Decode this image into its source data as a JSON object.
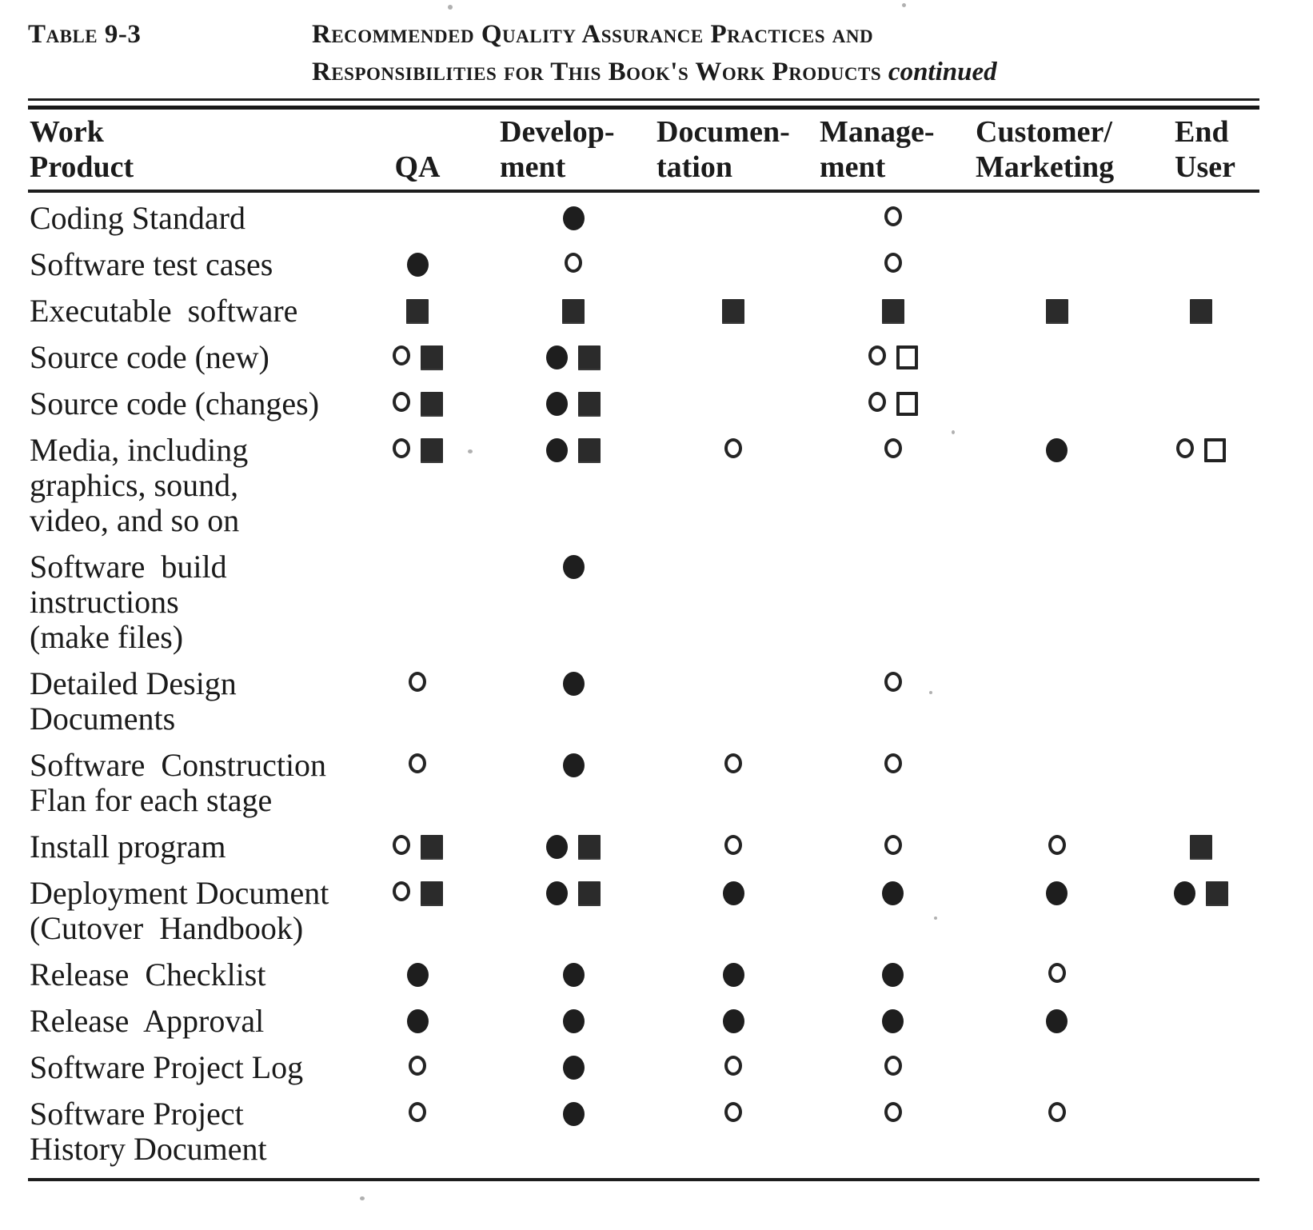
{
  "caption": {
    "label": "Table 9-3",
    "title_line1": "Recommended Quality Assurance Practices and",
    "title_line2": "Responsibilities for This Book's Work Products",
    "continued": "continued"
  },
  "colors": {
    "paper": "#ffffff",
    "ink": "#1b1b1b"
  },
  "symbol_legend": {
    "fc": "filled-circle",
    "oc": "open-circle",
    "fs": "filled-square",
    "os": "open-square"
  },
  "columns": [
    {
      "key": "work-product",
      "lines": [
        "Work",
        "Product"
      ]
    },
    {
      "key": "qa",
      "lines": [
        "",
        "QA"
      ]
    },
    {
      "key": "development",
      "lines": [
        "Develop-",
        "ment"
      ]
    },
    {
      "key": "documentation",
      "lines": [
        "Documen-",
        "tation"
      ]
    },
    {
      "key": "management",
      "lines": [
        "Manage-",
        "ment"
      ]
    },
    {
      "key": "customer-marketing",
      "lines": [
        "Customer/",
        "Marketing"
      ]
    },
    {
      "key": "end-user",
      "lines": [
        "End",
        "User"
      ]
    }
  ],
  "rows": [
    {
      "product_lines": [
        "Coding Standard"
      ],
      "cells": [
        [],
        [
          "fc"
        ],
        [],
        [
          "oc"
        ],
        [],
        []
      ]
    },
    {
      "product_lines": [
        "Software test cases"
      ],
      "cells": [
        [
          "fc"
        ],
        [
          "oc"
        ],
        [],
        [
          "oc"
        ],
        [],
        []
      ]
    },
    {
      "product_lines": [
        "Executable  software"
      ],
      "cells": [
        [
          "fs"
        ],
        [
          "fs"
        ],
        [
          "fs"
        ],
        [
          "fs"
        ],
        [
          "fs"
        ],
        [
          "fs"
        ]
      ]
    },
    {
      "product_lines": [
        "Source code (new)"
      ],
      "cells": [
        [
          "oc",
          "fs"
        ],
        [
          "fc",
          "fs"
        ],
        [],
        [
          "oc",
          "os"
        ],
        [],
        []
      ]
    },
    {
      "product_lines": [
        "Source code (changes)"
      ],
      "cells": [
        [
          "oc",
          "fs"
        ],
        [
          "fc",
          "fs"
        ],
        [],
        [
          "oc",
          "os"
        ],
        [],
        []
      ]
    },
    {
      "product_lines": [
        "Media, including",
        "graphics, sound,",
        "video, and so on"
      ],
      "cells": [
        [
          "oc",
          "fs"
        ],
        [
          "fc",
          "fs"
        ],
        [
          "oc"
        ],
        [
          "oc"
        ],
        [
          "fc"
        ],
        [
          "oc",
          "os"
        ]
      ]
    },
    {
      "product_lines": [
        "Software  build",
        "instructions",
        "(make files)"
      ],
      "cells": [
        [],
        [
          "fc"
        ],
        [],
        [],
        [],
        []
      ]
    },
    {
      "product_lines": [
        "Detailed Design",
        "Documents"
      ],
      "cells": [
        [
          "oc"
        ],
        [
          "fc"
        ],
        [],
        [
          "oc"
        ],
        [],
        []
      ]
    },
    {
      "product_lines": [
        "Software  Construction",
        "Flan for each stage"
      ],
      "cells": [
        [
          "oc"
        ],
        [
          "fc"
        ],
        [
          "oc"
        ],
        [
          "oc"
        ],
        [],
        []
      ]
    },
    {
      "product_lines": [
        "Install program"
      ],
      "cells": [
        [
          "oc",
          "fs"
        ],
        [
          "fc",
          "fs"
        ],
        [
          "oc"
        ],
        [
          "oc"
        ],
        [
          "oc"
        ],
        [
          "fs"
        ]
      ]
    },
    {
      "product_lines": [
        "Deployment Document",
        "(Cutover  Handbook)"
      ],
      "cells": [
        [
          "oc",
          "fs"
        ],
        [
          "fc",
          "fs"
        ],
        [
          "fc"
        ],
        [
          "fc"
        ],
        [
          "fc"
        ],
        [
          "fc",
          "fs"
        ]
      ]
    },
    {
      "product_lines": [
        "Release  Checklist"
      ],
      "cells": [
        [
          "fc"
        ],
        [
          "fc"
        ],
        [
          "fc"
        ],
        [
          "fc"
        ],
        [
          "oc"
        ],
        []
      ]
    },
    {
      "product_lines": [
        "Release  Approval"
      ],
      "cells": [
        [
          "fc"
        ],
        [
          "fc"
        ],
        [
          "fc"
        ],
        [
          "fc"
        ],
        [
          "fc"
        ],
        []
      ]
    },
    {
      "product_lines": [
        "Software Project Log"
      ],
      "cells": [
        [
          "oc"
        ],
        [
          "fc"
        ],
        [
          "oc"
        ],
        [
          "oc"
        ],
        [],
        []
      ]
    },
    {
      "product_lines": [
        "Software Project",
        "History Document"
      ],
      "cells": [
        [
          "oc"
        ],
        [
          "fc"
        ],
        [
          "oc"
        ],
        [
          "oc"
        ],
        [
          "oc"
        ],
        []
      ]
    }
  ]
}
